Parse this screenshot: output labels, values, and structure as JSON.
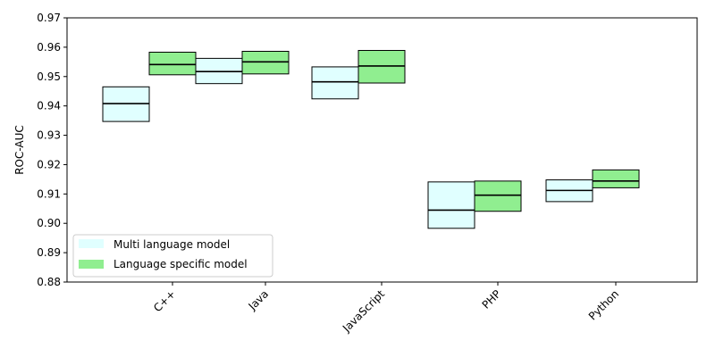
{
  "chart_data": {
    "type": "box",
    "title": "",
    "xlabel": "",
    "ylabel": "ROC-AUC",
    "ylim": [
      0.88,
      0.97
    ],
    "yticks": [
      "0.88",
      "0.89",
      "0.90",
      "0.91",
      "0.92",
      "0.93",
      "0.94",
      "0.95",
      "0.96",
      "0.97"
    ],
    "categories": [
      "C++",
      "Java",
      "JavaScript",
      "PHP",
      "Python"
    ],
    "grid": false,
    "legend_position": "lower-left",
    "series": [
      {
        "name": "Multi language model",
        "color": "#e0ffff",
        "boxes": [
          {
            "q1": 0.9347,
            "median": 0.9408,
            "q3": 0.9465
          },
          {
            "q1": 0.9476,
            "median": 0.9517,
            "q3": 0.9562
          },
          {
            "q1": 0.9424,
            "median": 0.9482,
            "q3": 0.9533
          },
          {
            "q1": 0.8983,
            "median": 0.9045,
            "q3": 0.9141
          },
          {
            "q1": 0.9074,
            "median": 0.9112,
            "q3": 0.9148
          }
        ]
      },
      {
        "name": "Language specific model",
        "color": "#90ee90",
        "boxes": [
          {
            "q1": 0.9506,
            "median": 0.9541,
            "q3": 0.9583
          },
          {
            "q1": 0.9509,
            "median": 0.955,
            "q3": 0.9586
          },
          {
            "q1": 0.9478,
            "median": 0.9536,
            "q3": 0.9589
          },
          {
            "q1": 0.9041,
            "median": 0.9096,
            "q3": 0.9144
          },
          {
            "q1": 0.9121,
            "median": 0.9144,
            "q3": 0.9182
          }
        ]
      }
    ]
  }
}
